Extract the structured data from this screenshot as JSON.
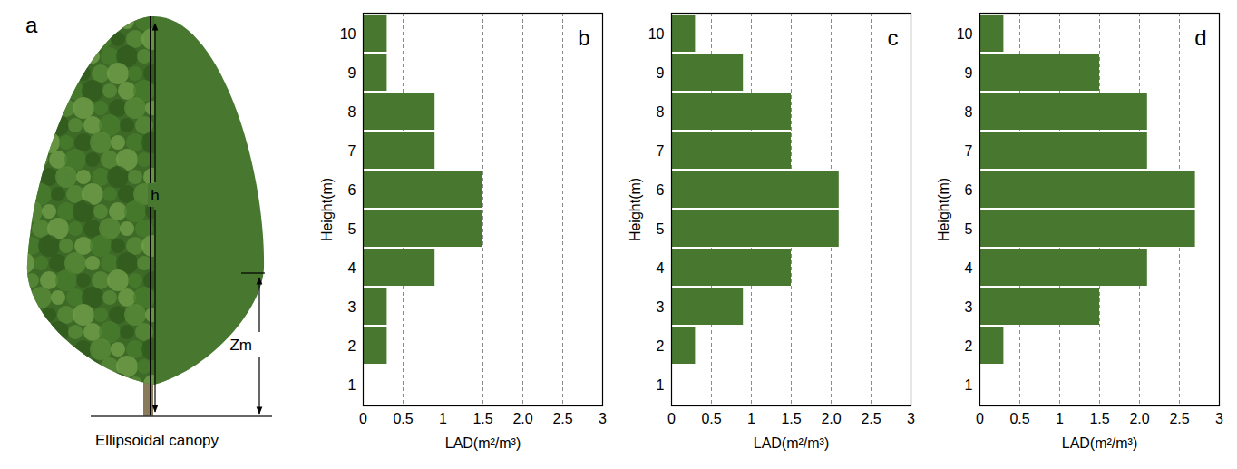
{
  "diagram": {
    "label": "a",
    "caption": "Ellipsoidal canopy",
    "annotations": [
      "h",
      "Zm"
    ]
  },
  "chart_data": [
    {
      "type": "bar",
      "orientation": "horizontal",
      "title": "b",
      "categories": [
        "1",
        "2",
        "3",
        "4",
        "5",
        "6",
        "7",
        "8",
        "9",
        "10"
      ],
      "values": [
        0,
        0.3,
        0.3,
        0.9,
        1.5,
        1.5,
        0.9,
        0.9,
        0.3,
        0.3
      ],
      "color": "#48772f",
      "xlabel": "LAD(m²/m³)",
      "ylabel": "Height(m)",
      "xlim": [
        0,
        3
      ],
      "xticks": [
        0,
        0.5,
        1,
        1.5,
        {
          "value": 2,
          "label": "2.0"
        },
        2.5,
        3
      ],
      "grid": true
    },
    {
      "type": "bar",
      "orientation": "horizontal",
      "title": "c",
      "categories": [
        "1",
        "2",
        "3",
        "4",
        "5",
        "6",
        "7",
        "8",
        "9",
        "10"
      ],
      "values": [
        0,
        0.3,
        0.9,
        1.5,
        2.1,
        2.1,
        1.5,
        1.5,
        0.9,
        0.3
      ],
      "color": "#48772f",
      "xlabel": "LAD(m²/m³)",
      "ylabel": "Height(m)",
      "xlim": [
        0,
        3
      ],
      "xticks": [
        0,
        0.5,
        1,
        1.5,
        {
          "value": 2,
          "label": "2.0"
        },
        2.5,
        3
      ],
      "grid": true
    },
    {
      "type": "bar",
      "orientation": "horizontal",
      "title": "d",
      "categories": [
        "1",
        "2",
        "3",
        "4",
        "5",
        "6",
        "7",
        "8",
        "9",
        "10"
      ],
      "values": [
        0,
        0.3,
        1.5,
        2.1,
        2.7,
        2.7,
        2.1,
        2.1,
        1.5,
        0.3
      ],
      "color": "#48772f",
      "xlabel": "LAD(m²/m³)",
      "ylabel": "Height(m)",
      "xlim": [
        0,
        3
      ],
      "xticks": [
        0,
        0.5,
        1,
        1.5,
        {
          "value": 2,
          "label": "2.0"
        },
        2.5,
        3
      ],
      "grid": true
    }
  ]
}
